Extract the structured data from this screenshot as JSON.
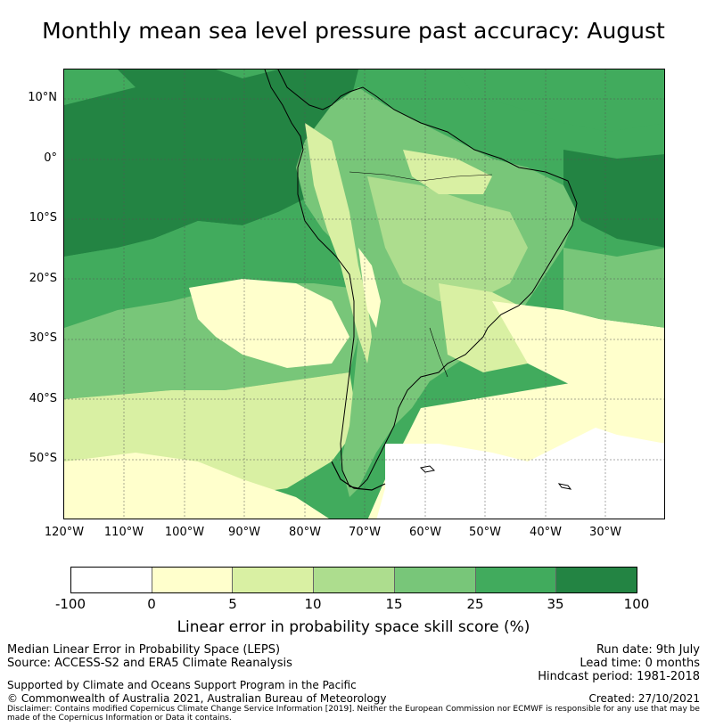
{
  "title": "Monthly mean sea level pressure past accuracy: August",
  "map": {
    "lat_labels": [
      "10°N",
      "0°",
      "10°S",
      "20°S",
      "30°S",
      "40°S",
      "50°S"
    ],
    "lon_labels": [
      "120°W",
      "110°W",
      "100°W",
      "90°W",
      "80°W",
      "70°W",
      "60°W",
      "50°W",
      "40°W",
      "30°W"
    ],
    "region": "South America and surrounding oceans"
  },
  "colorbar": {
    "ticks": [
      "-100",
      "0",
      "5",
      "10",
      "15",
      "25",
      "35",
      "100"
    ],
    "colors": [
      "#ffffff",
      "#ffffcc",
      "#d9f0a3",
      "#addd8e",
      "#78c679",
      "#41ab5d",
      "#238443"
    ],
    "label": "Linear error in probability space skill score (%)"
  },
  "footer": {
    "left_line1": "Median Linear Error in Probability Space (LEPS)",
    "left_line2": "Source: ACCESS-S2 and ERA5 Climate Reanalysis",
    "left_line3": "Supported by Climate and Oceans Support Program in the Pacific",
    "left_line4": "© Commonwealth of Australia 2021, Australian Bureau of Meteorology",
    "right_line1": "Run date: 9th July",
    "right_line2": "Lead time: 0 months",
    "right_line3": "Hindcast period: 1981-2018",
    "right_line4": "Created: 27/10/2021",
    "disclaimer": "Disclaimer: Contains modified Copernicus Climate Change Service Information [2019]. Neither the European Commission nor ECMWF is responsible for any use that may be made of the Copernicus Information or Data it contains."
  }
}
